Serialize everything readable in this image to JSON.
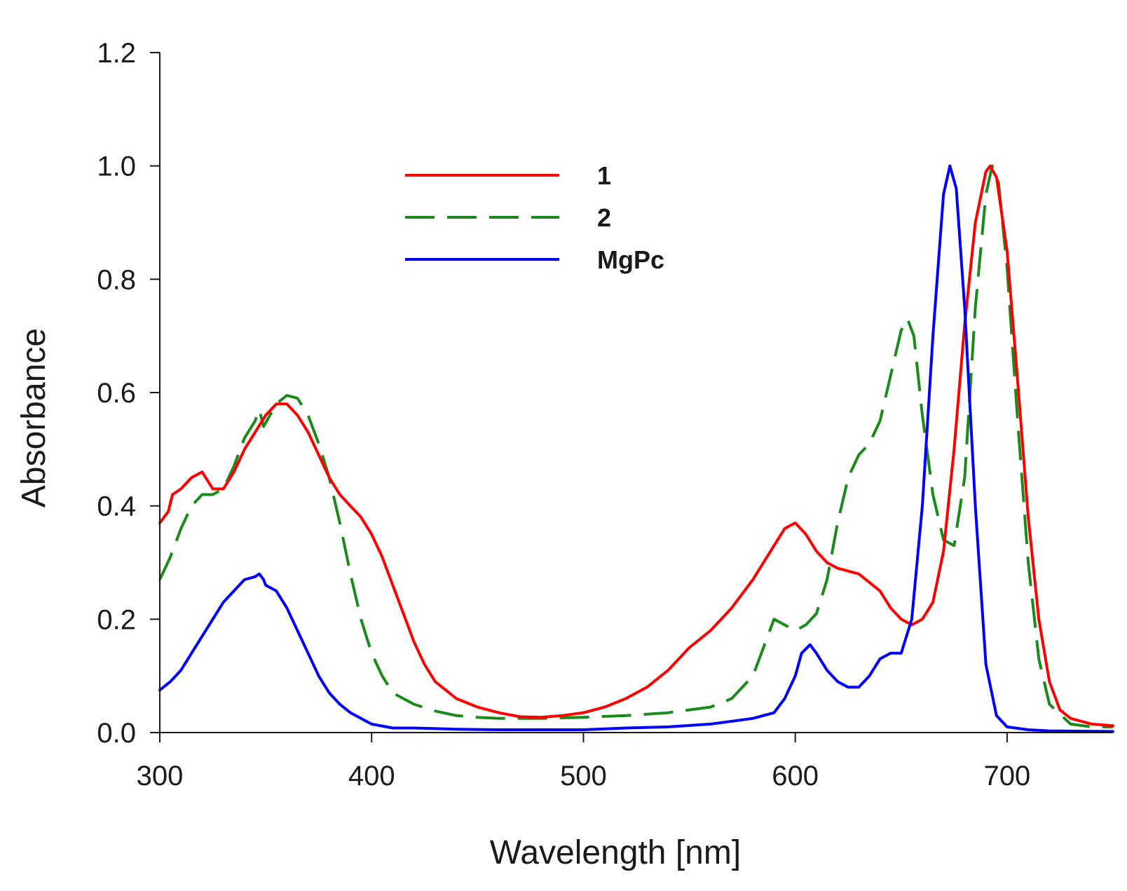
{
  "chart_data": {
    "type": "line",
    "title": "",
    "xlabel": "Wavelength [nm]",
    "ylabel": "Absorbance",
    "xlim": [
      300,
      750
    ],
    "ylim": [
      0.0,
      1.2
    ],
    "xticks": [
      300,
      400,
      500,
      600,
      700
    ],
    "xtick_labels": [
      "300",
      "400",
      "500",
      "600",
      "700"
    ],
    "yticks": [
      0.0,
      0.2,
      0.4,
      0.6,
      0.8,
      1.0,
      1.2
    ],
    "ytick_labels": [
      "0.0",
      "0.2",
      "0.4",
      "0.6",
      "0.8",
      "1.0",
      "1.2"
    ],
    "grid": false,
    "legend_position": "upper-center",
    "series": [
      {
        "name": "1",
        "color": "#ff0000",
        "style": "solid",
        "x": [
          300,
          304,
          306,
          310,
          315,
          320,
          325,
          330,
          335,
          340,
          345,
          350,
          355,
          360,
          365,
          370,
          375,
          380,
          385,
          390,
          395,
          400,
          405,
          410,
          415,
          420,
          425,
          430,
          440,
          450,
          460,
          470,
          480,
          490,
          500,
          510,
          520,
          530,
          540,
          550,
          560,
          570,
          580,
          590,
          595,
          600,
          605,
          610,
          615,
          620,
          630,
          640,
          645,
          650,
          655,
          660,
          665,
          670,
          675,
          680,
          685,
          690,
          692,
          695,
          700,
          705,
          710,
          715,
          720,
          725,
          730,
          740,
          750
        ],
        "values": [
          0.37,
          0.39,
          0.42,
          0.43,
          0.45,
          0.46,
          0.43,
          0.43,
          0.46,
          0.5,
          0.53,
          0.56,
          0.58,
          0.58,
          0.56,
          0.53,
          0.49,
          0.45,
          0.42,
          0.4,
          0.38,
          0.35,
          0.31,
          0.26,
          0.21,
          0.16,
          0.12,
          0.09,
          0.06,
          0.045,
          0.035,
          0.028,
          0.027,
          0.03,
          0.035,
          0.045,
          0.06,
          0.08,
          0.11,
          0.15,
          0.18,
          0.22,
          0.27,
          0.33,
          0.36,
          0.37,
          0.35,
          0.32,
          0.3,
          0.29,
          0.28,
          0.25,
          0.22,
          0.2,
          0.19,
          0.2,
          0.23,
          0.32,
          0.5,
          0.72,
          0.9,
          0.99,
          1.0,
          0.98,
          0.85,
          0.62,
          0.38,
          0.2,
          0.09,
          0.04,
          0.025,
          0.015,
          0.012
        ]
      },
      {
        "name": "2",
        "color": "#1a8a1a",
        "style": "dashed",
        "x": [
          300,
          305,
          310,
          315,
          320,
          325,
          330,
          335,
          340,
          345,
          347,
          349,
          355,
          360,
          365,
          370,
          375,
          380,
          385,
          390,
          395,
          400,
          405,
          410,
          420,
          430,
          440,
          450,
          460,
          480,
          500,
          520,
          540,
          560,
          570,
          580,
          585,
          590,
          595,
          600,
          605,
          610,
          615,
          620,
          625,
          630,
          635,
          640,
          645,
          650,
          653,
          656,
          660,
          665,
          670,
          675,
          680,
          685,
          690,
          693,
          696,
          700,
          705,
          710,
          715,
          720,
          730,
          740,
          750
        ],
        "values": [
          0.27,
          0.31,
          0.36,
          0.4,
          0.42,
          0.42,
          0.43,
          0.47,
          0.52,
          0.55,
          0.57,
          0.54,
          0.58,
          0.595,
          0.59,
          0.56,
          0.51,
          0.45,
          0.37,
          0.28,
          0.2,
          0.14,
          0.1,
          0.07,
          0.05,
          0.038,
          0.03,
          0.027,
          0.025,
          0.025,
          0.027,
          0.03,
          0.035,
          0.045,
          0.06,
          0.1,
          0.15,
          0.2,
          0.19,
          0.18,
          0.19,
          0.21,
          0.27,
          0.37,
          0.45,
          0.49,
          0.51,
          0.55,
          0.63,
          0.71,
          0.73,
          0.7,
          0.56,
          0.42,
          0.34,
          0.33,
          0.45,
          0.75,
          0.95,
          1.0,
          0.97,
          0.82,
          0.55,
          0.3,
          0.13,
          0.05,
          0.015,
          0.01,
          0.01
        ]
      },
      {
        "name": "MgPc",
        "color": "#0000ff",
        "style": "solid",
        "x": [
          300,
          305,
          310,
          315,
          320,
          325,
          330,
          335,
          340,
          345,
          347,
          349,
          350,
          355,
          360,
          365,
          370,
          375,
          380,
          385,
          390,
          395,
          400,
          410,
          420,
          440,
          460,
          480,
          500,
          520,
          540,
          560,
          580,
          590,
          595,
          600,
          603,
          607,
          610,
          615,
          620,
          625,
          630,
          635,
          640,
          645,
          650,
          655,
          660,
          665,
          670,
          673,
          676,
          680,
          685,
          690,
          695,
          700,
          710,
          720,
          750
        ],
        "values": [
          0.075,
          0.09,
          0.11,
          0.14,
          0.17,
          0.2,
          0.23,
          0.25,
          0.27,
          0.275,
          0.28,
          0.27,
          0.26,
          0.25,
          0.22,
          0.18,
          0.14,
          0.1,
          0.07,
          0.05,
          0.035,
          0.025,
          0.015,
          0.008,
          0.008,
          0.006,
          0.005,
          0.005,
          0.005,
          0.008,
          0.01,
          0.015,
          0.025,
          0.035,
          0.06,
          0.1,
          0.14,
          0.155,
          0.14,
          0.11,
          0.09,
          0.08,
          0.08,
          0.1,
          0.13,
          0.14,
          0.14,
          0.2,
          0.4,
          0.7,
          0.95,
          1.0,
          0.96,
          0.75,
          0.4,
          0.12,
          0.03,
          0.01,
          0.005,
          0.003,
          0.002
        ]
      }
    ]
  }
}
